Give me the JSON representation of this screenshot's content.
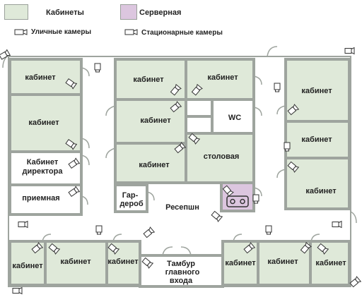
{
  "legend": {
    "offices": "Кабинеты",
    "server": "Серверная",
    "street_cameras": "Уличные камеры",
    "fixed_cameras": "Стационарные камеры"
  },
  "colors": {
    "office_fill": "#dfe9d9",
    "server_fill": "#dcc6df",
    "wall": "#9ea49e",
    "text": "#222222"
  },
  "rooms": {
    "office_label": "кабинет",
    "director_line1": "Кабинет",
    "director_line2": "директора",
    "reception_room": "приемная",
    "wc": "WC",
    "canteen": "столовая",
    "wardrobe_line1": "Гар-",
    "wardrobe_line2": "дероб",
    "reception": "Ресепшн",
    "vestibule_line1": "Тамбур",
    "vestibule_line2": "главного",
    "vestibule_line3": "входа"
  }
}
